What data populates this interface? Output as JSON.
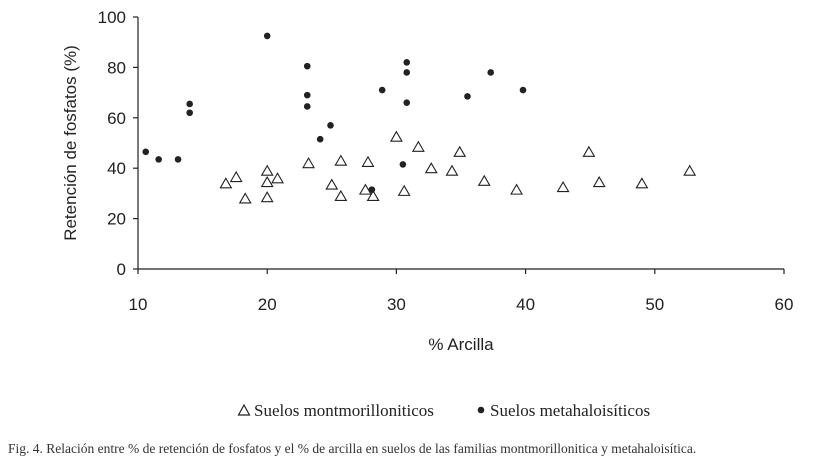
{
  "chart_data": {
    "type": "scatter",
    "xlabel": "% Arcilla",
    "ylabel": "Retención de fosfatos (%)",
    "xlim": [
      10,
      60
    ],
    "ylim": [
      0,
      100
    ],
    "xticks": [
      "10",
      "20",
      "30",
      "40",
      "50",
      "60"
    ],
    "yticks": [
      "0",
      "20",
      "40",
      "60",
      "80",
      "100"
    ],
    "legend_position": "bottom",
    "series": [
      {
        "name": "Suelos montmorilloniticos",
        "marker": "triangle-open",
        "points": [
          [
            16.8,
            34
          ],
          [
            17.6,
            36.5
          ],
          [
            18.3,
            28
          ],
          [
            20.0,
            39
          ],
          [
            20.0,
            34.5
          ],
          [
            20.0,
            28.5
          ],
          [
            20.8,
            36
          ],
          [
            23.2,
            42
          ],
          [
            25.0,
            33.5
          ],
          [
            25.7,
            43
          ],
          [
            25.7,
            29
          ],
          [
            27.6,
            31.5
          ],
          [
            27.8,
            42.5
          ],
          [
            28.2,
            29
          ],
          [
            30.0,
            52.5
          ],
          [
            30.6,
            31
          ],
          [
            31.7,
            48.5
          ],
          [
            32.7,
            40
          ],
          [
            34.3,
            39
          ],
          [
            34.9,
            46.5
          ],
          [
            36.8,
            35
          ],
          [
            39.3,
            31.5
          ],
          [
            42.9,
            32.5
          ],
          [
            44.9,
            46.5
          ],
          [
            45.7,
            34.5
          ],
          [
            49.0,
            34
          ],
          [
            52.7,
            39
          ]
        ]
      },
      {
        "name": "Suelos metahaloisíticos",
        "marker": "circle-filled",
        "points": [
          [
            10.6,
            46.5
          ],
          [
            11.6,
            43.5
          ],
          [
            13.1,
            43.5
          ],
          [
            14.0,
            65.5
          ],
          [
            14.0,
            62
          ],
          [
            20.0,
            92.5
          ],
          [
            23.1,
            80.5
          ],
          [
            23.1,
            69
          ],
          [
            23.1,
            64.5
          ],
          [
            24.1,
            51.5
          ],
          [
            24.9,
            57
          ],
          [
            28.1,
            31.5
          ],
          [
            28.9,
            71
          ],
          [
            30.5,
            41.5
          ],
          [
            30.8,
            82
          ],
          [
            30.8,
            78
          ],
          [
            30.8,
            66
          ],
          [
            35.5,
            68.5
          ],
          [
            37.3,
            78
          ],
          [
            39.8,
            71
          ]
        ]
      }
    ]
  },
  "caption": "Fig. 4.   Relación entre % de retención de fosfatos y el % de arcilla en suelos de las familias montmorillonitica y metahaloisítica."
}
